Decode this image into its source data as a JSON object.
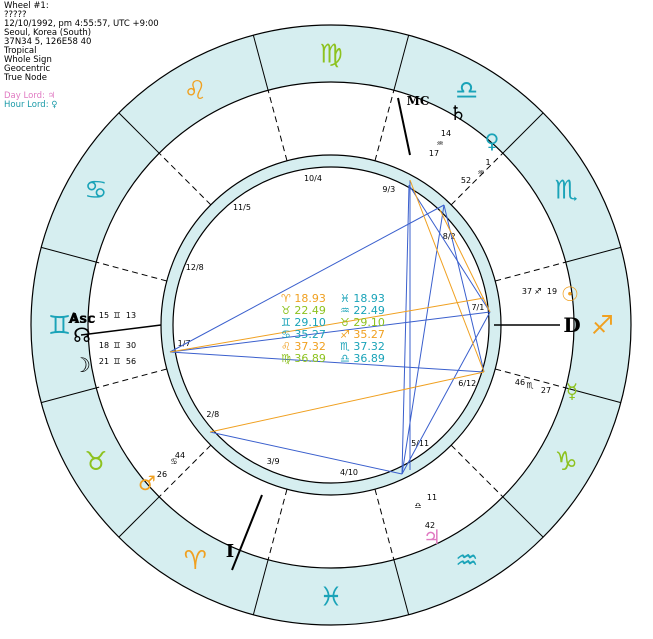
{
  "header": {
    "lines": [
      "Wheel #1:",
      "?????",
      "12/10/1992, pm 4:55:57, UTC +9:00",
      "Seoul, Korea (South)",
      "37N34 5, 126E58 40",
      "Tropical",
      "Whole Sign",
      "Geocentric",
      "True Node"
    ],
    "day_lord": "Day Lord: ♃",
    "hour_lord": "Hour Lord: ♀"
  },
  "colors": {
    "ring": "#d6eef0",
    "fire": "#f0a020",
    "earth": "#8dc21f",
    "air": "#1aa3b8",
    "water": "#1aa3b8",
    "aspect_blue": "#3a5fcd",
    "aspect_orange": "#f0a020",
    "pink": "#e07ac2"
  },
  "signs": [
    {
      "name": "aries",
      "glyph": "♈",
      "color": "#f0a020"
    },
    {
      "name": "taurus",
      "glyph": "♉",
      "color": "#8dc21f"
    },
    {
      "name": "gemini",
      "glyph": "♊",
      "color": "#1aa3b8"
    },
    {
      "name": "cancer",
      "glyph": "♋",
      "color": "#1aa3b8"
    },
    {
      "name": "leo",
      "glyph": "♌",
      "color": "#f0a020"
    },
    {
      "name": "virgo",
      "glyph": "♍",
      "color": "#8dc21f"
    },
    {
      "name": "libra",
      "glyph": "♎",
      "color": "#1aa3b8"
    },
    {
      "name": "scorpio",
      "glyph": "♏",
      "color": "#1aa3b8"
    },
    {
      "name": "sagittarius",
      "glyph": "♐",
      "color": "#f0a020"
    },
    {
      "name": "capricorn",
      "glyph": "♑",
      "color": "#8dc21f"
    },
    {
      "name": "aquarius",
      "glyph": "♒",
      "color": "#1aa3b8"
    },
    {
      "name": "pisces",
      "glyph": "♓",
      "color": "#1aa3b8"
    }
  ],
  "house_cusps": [
    "1/7",
    "12/8",
    "11/5",
    "10/4",
    "9/3",
    "8/2",
    "7/1",
    "6/12",
    "5/11",
    "4/10",
    "3/9",
    "2/8"
  ],
  "angles": {
    "asc": "Asc",
    "mc": "MC",
    "ic": "I",
    "dsc": "D"
  },
  "planets": [
    {
      "name": "moon-node",
      "glyph": "☊",
      "deg": "18",
      "sign": "♊",
      "min": "30",
      "color": "#000"
    },
    {
      "name": "asc",
      "glyph": "Asc",
      "deg": "15",
      "sign": "♊",
      "min": "13",
      "color": "#000"
    },
    {
      "name": "moon",
      "glyph": "☽",
      "deg": "21",
      "sign": "♊",
      "min": "56",
      "color": "#000"
    },
    {
      "name": "saturn",
      "glyph": "♄",
      "deg": "14",
      "sign": "♒",
      "min": "17",
      "color": "#000"
    },
    {
      "name": "venus",
      "glyph": "♀",
      "deg": "1",
      "sign": "♒",
      "min": "52",
      "color": "#1aa3b8"
    },
    {
      "name": "sun",
      "glyph": "☉",
      "deg": "19",
      "sign": "♐",
      "min": "37",
      "color": "#f0a020"
    },
    {
      "name": "mercury",
      "glyph": "☿",
      "deg": "27",
      "sign": "♏",
      "min": "46",
      "color": "#8dc21f"
    },
    {
      "name": "jupiter",
      "glyph": "♃",
      "deg": "11",
      "sign": "♎",
      "min": "42",
      "color": "#e07ac2"
    },
    {
      "name": "mars",
      "glyph": "♂",
      "deg": "26",
      "sign": "♋",
      "min": "44",
      "color": "#f0a020"
    }
  ],
  "aspect_table": [
    {
      "sym": "♈",
      "val": "18.93",
      "color": "#f0a020"
    },
    {
      "sym": "♓",
      "val": "18.93",
      "color": "#1aa3b8"
    },
    {
      "sym": "♉",
      "val": "22.49",
      "color": "#8dc21f"
    },
    {
      "sym": "♒",
      "val": "22.49",
      "color": "#1aa3b8"
    },
    {
      "sym": "♊",
      "val": "29.10",
      "color": "#1aa3b8"
    },
    {
      "sym": "♉",
      "val": "29.10",
      "color": "#8dc21f"
    },
    {
      "sym": "♋",
      "val": "35.27",
      "color": "#1aa3b8"
    },
    {
      "sym": "♐",
      "val": "35.27",
      "color": "#f0a020"
    },
    {
      "sym": "♌",
      "val": "37.32",
      "color": "#f0a020"
    },
    {
      "sym": "♏",
      "val": "37.32",
      "color": "#1aa3b8"
    },
    {
      "sym": "♍",
      "val": "36.89",
      "color": "#8dc21f"
    },
    {
      "sym": "♎",
      "val": "36.89",
      "color": "#1aa3b8"
    }
  ]
}
